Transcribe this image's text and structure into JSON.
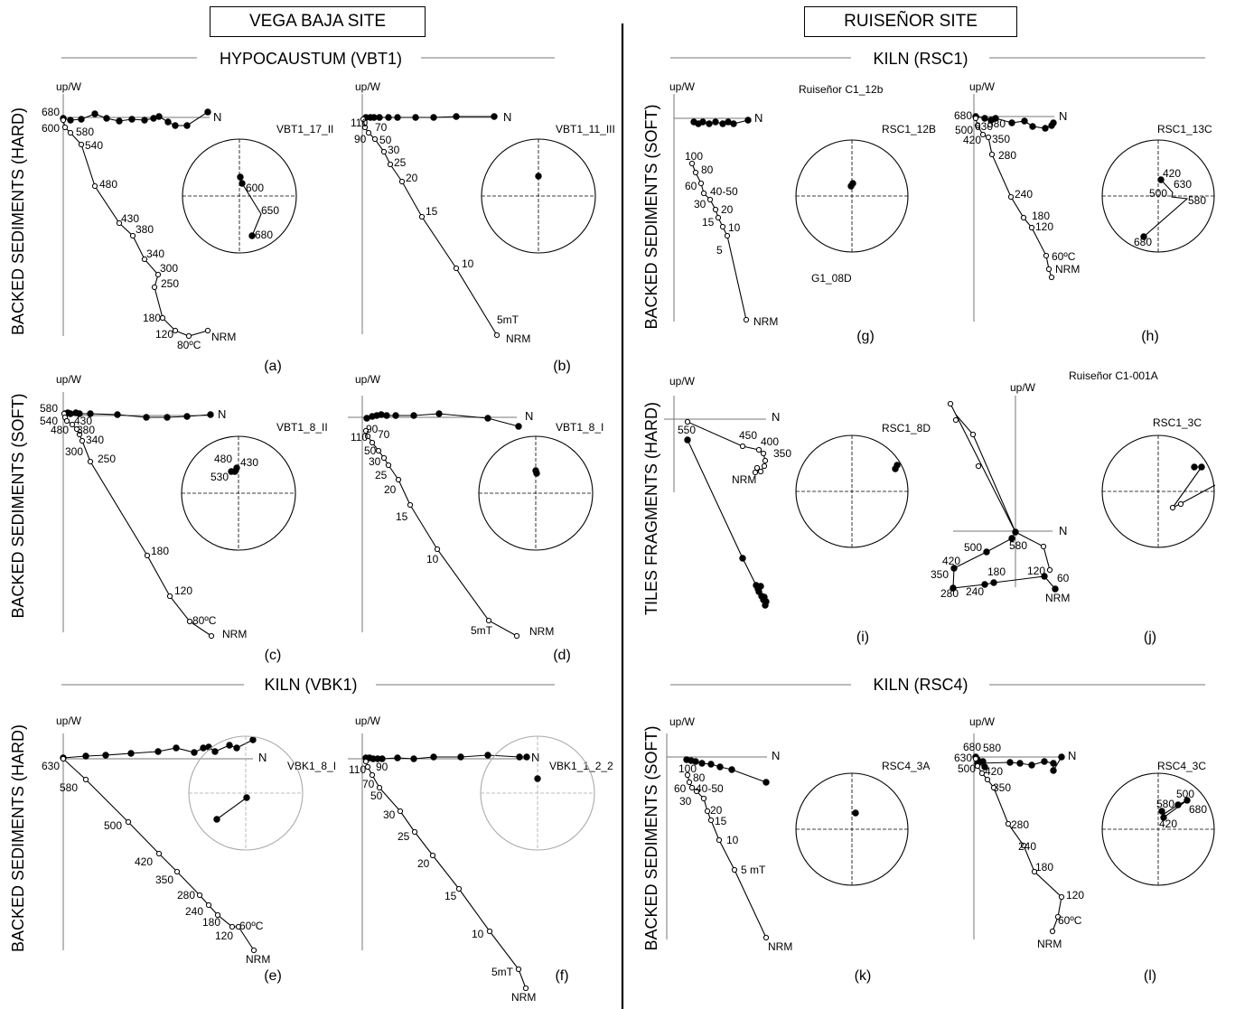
{
  "sites": {
    "left": "VEGA BAJA SITE",
    "right": "RUISEÑOR SITE"
  },
  "sections": {
    "vbt1": "HYPOCAUSTUM (VBT1)",
    "vbk1": "KILN (VBK1)",
    "rsc1": "KILN (RSC1)",
    "rsc4": "KILN (RSC4)"
  },
  "row_labels": {
    "l1": "BACKED SEDIMENTS (HARD)",
    "l2": "BACKED SEDIMENTS (SOFT)",
    "l3": "BACKED SEDIMENTS (HARD)",
    "r1": "BACKED SEDIMENTS (SOFT)",
    "r2": "TILES FRAGMENTS (HARD)",
    "r3": "BACKED SEDIMENTS (SOFT)"
  },
  "axis": {
    "up": "up/W",
    "north": "N"
  },
  "panels": {
    "a": {
      "letter": "(a)",
      "sample": "VBT1_17_II"
    },
    "b": {
      "letter": "(b)",
      "sample": "VBT1_11_III"
    },
    "c": {
      "letter": "(c)",
      "sample": "VBT1_8_II"
    },
    "d": {
      "letter": "(d)",
      "sample": "VBT1_8_I"
    },
    "e": {
      "letter": "(e)",
      "sample": "VBK1_8_I"
    },
    "f": {
      "letter": "(f)",
      "sample": "VBK1_1_2_2"
    },
    "g": {
      "letter": "(g)",
      "sample": "RSC1_12B",
      "top_label": "Ruiseñor C1_12b",
      "extra_label": "G1_08D"
    },
    "h": {
      "letter": "(h)",
      "sample": "RSC1_13C"
    },
    "i": {
      "letter": "(i)",
      "sample": "RSC1_8D"
    },
    "j": {
      "letter": "(j)",
      "sample": "RSC1_3C",
      "top_label": "Ruiseñor C1-001A"
    },
    "k": {
      "letter": "(k)",
      "sample": "RSC4_3A"
    },
    "l": {
      "letter": "(l)",
      "sample": "RSC4_3C"
    }
  },
  "step_labels": {
    "a_vertical": [
      "680",
      "600",
      "580",
      "540",
      "480",
      "430",
      "380",
      "340",
      "300",
      "250",
      "180",
      "120",
      "80ºC",
      "NRM"
    ],
    "a_stereo": [
      "600",
      "650",
      "680"
    ],
    "b_vertical": [
      "110",
      "70",
      "90",
      "50",
      "30",
      "25",
      "20",
      "15",
      "10",
      "5mT",
      "NRM"
    ],
    "c_vertical": [
      "580",
      "540",
      "430",
      "480",
      "380",
      "340",
      "300",
      "250",
      "180",
      "120",
      "80ºC",
      "NRM"
    ],
    "c_stereo": [
      "480",
      "430",
      "530"
    ],
    "d_vertical": [
      "90",
      "110",
      "70",
      "50",
      "30",
      "25",
      "20",
      "15",
      "10",
      "5mT",
      "NRM"
    ],
    "e_vertical": [
      "630",
      "580",
      "500",
      "420",
      "350",
      "280",
      "240",
      "180",
      "120",
      "60ºC",
      "NRM"
    ],
    "f_vertical": [
      "110",
      "90",
      "70",
      "50",
      "30",
      "25",
      "20",
      "15",
      "10",
      "5mT",
      "NRM"
    ],
    "g_vertical": [
      "100",
      "80",
      "60",
      "40-50",
      "30",
      "20",
      "15",
      "10",
      "5",
      "NRM"
    ],
    "h_vertical": [
      "680",
      "630",
      "580",
      "500",
      "420",
      "350",
      "280",
      "240",
      "180",
      "120",
      "60ºC",
      "NRM"
    ],
    "h_stereo": [
      "420",
      "630",
      "500",
      "580",
      "680"
    ],
    "i_vertical": [
      "550",
      "450",
      "400",
      "350",
      "NRM"
    ],
    "j_vertical": [
      "580",
      "500",
      "420",
      "350",
      "280",
      "240",
      "180",
      "120",
      "60",
      "NRM"
    ],
    "k_vertical": [
      "100",
      "80",
      "60",
      "40-50",
      "30",
      "20",
      "15",
      "10",
      "5 mT",
      "NRM"
    ],
    "l_vertical": [
      "680",
      "580",
      "630",
      "500",
      "420",
      "350",
      "280",
      "240",
      "180",
      "120",
      "60ºC",
      "NRM"
    ],
    "l_stereo": [
      "500",
      "580",
      "680",
      "420"
    ]
  }
}
